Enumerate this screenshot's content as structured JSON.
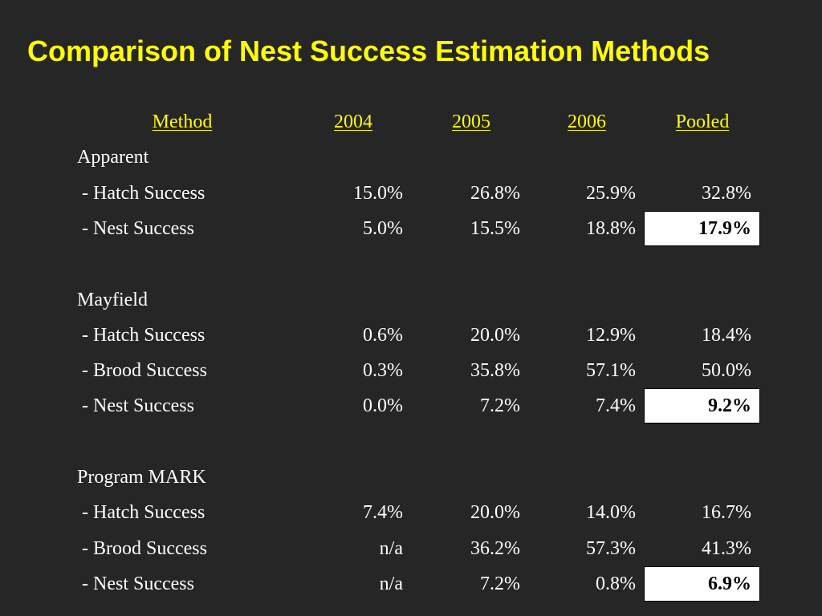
{
  "title": "Comparison of Nest Success Estimation Methods",
  "colors": {
    "background": "#262626",
    "title": "#ffff00",
    "header": "#ffff00",
    "text": "#ffffff",
    "highlight_bg": "#ffffff",
    "highlight_text": "#000000"
  },
  "table": {
    "headers": [
      "Method",
      "2004",
      "2005",
      "2006",
      "Pooled"
    ],
    "groups": [
      {
        "name": "Apparent",
        "rows": [
          {
            "label": " - Hatch Success",
            "values": [
              "15.0%",
              "26.8%",
              "25.9%",
              "32.8%"
            ],
            "highlight": false
          },
          {
            "label": " - Nest Success",
            "values": [
              "5.0%",
              "15.5%",
              "18.8%",
              "17.9%"
            ],
            "highlight": true
          }
        ]
      },
      {
        "name": "Mayfield",
        "rows": [
          {
            "label": " - Hatch Success",
            "values": [
              "0.6%",
              "20.0%",
              "12.9%",
              "18.4%"
            ],
            "highlight": false
          },
          {
            "label": " - Brood Success",
            "values": [
              "0.3%",
              "35.8%",
              "57.1%",
              "50.0%"
            ],
            "highlight": false
          },
          {
            "label": " - Nest Success",
            "values": [
              "0.0%",
              "7.2%",
              "7.4%",
              "9.2%"
            ],
            "highlight": true
          }
        ]
      },
      {
        "name": "Program MARK",
        "rows": [
          {
            "label": " - Hatch Success",
            "values": [
              "7.4%",
              "20.0%",
              "14.0%",
              "16.7%"
            ],
            "highlight": false
          },
          {
            "label": " - Brood Success",
            "values": [
              "n/a",
              "36.2%",
              "57.3%",
              "41.3%"
            ],
            "highlight": false
          },
          {
            "label": " - Nest Success",
            "values": [
              "n/a",
              "7.2%",
              "0.8%",
              "6.9%"
            ],
            "highlight": true
          }
        ]
      }
    ]
  }
}
